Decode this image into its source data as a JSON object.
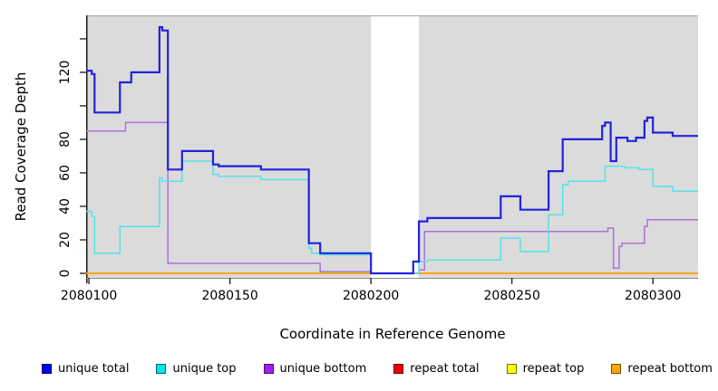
{
  "chart_data": {
    "type": "line",
    "subtype": "step-after",
    "title": "",
    "xlabel": "Coordinate in Reference Genome",
    "ylabel": "Read Coverage Depth",
    "xlim": [
      2080099,
      2080316
    ],
    "ylim": [
      0,
      154
    ],
    "grid": false,
    "legend_position": "bottom",
    "plot_bg_color": "#DBDBDB",
    "page_bg_color": "#FFFFFF",
    "gap_region": {
      "x_start": 2080200,
      "x_end": 2080217,
      "color": "#FFFFFF",
      "meaning": "zero-coverage gap"
    },
    "x_ticks": [
      {
        "value": 2080100,
        "label": "2080100"
      },
      {
        "value": 2080150,
        "label": "2080150"
      },
      {
        "value": 2080200,
        "label": "2080200"
      },
      {
        "value": 2080250,
        "label": "2080250"
      },
      {
        "value": 2080300,
        "label": "2080300"
      }
    ],
    "y_ticks": [
      {
        "value": 0,
        "label": "0"
      },
      {
        "value": 20,
        "label": "20"
      },
      {
        "value": 40,
        "label": "40"
      },
      {
        "value": 60,
        "label": "60"
      },
      {
        "value": 80,
        "label": "80"
      },
      {
        "value": 100,
        "label": ""
      },
      {
        "value": 120,
        "label": "120"
      },
      {
        "value": 140,
        "label": ""
      }
    ],
    "series": [
      {
        "name": "unique total",
        "color": "#2222DD",
        "swatch": "#0000EE",
        "width": 2.2,
        "points": [
          [
            2080099,
            121
          ],
          [
            2080101,
            119
          ],
          [
            2080102,
            96
          ],
          [
            2080111,
            114
          ],
          [
            2080115,
            120
          ],
          [
            2080125,
            147
          ],
          [
            2080126,
            145
          ],
          [
            2080128,
            62
          ],
          [
            2080133,
            73
          ],
          [
            2080144,
            65
          ],
          [
            2080146,
            64
          ],
          [
            2080161,
            62
          ],
          [
            2080178,
            18
          ],
          [
            2080182,
            12
          ],
          [
            2080200,
            0
          ],
          [
            2080215,
            7
          ],
          [
            2080217,
            31
          ],
          [
            2080220,
            33
          ],
          [
            2080246,
            46
          ],
          [
            2080253,
            38
          ],
          [
            2080263,
            61
          ],
          [
            2080268,
            80
          ],
          [
            2080282,
            88
          ],
          [
            2080283,
            90
          ],
          [
            2080285,
            67
          ],
          [
            2080287,
            81
          ],
          [
            2080291,
            79
          ],
          [
            2080294,
            81
          ],
          [
            2080297,
            91
          ],
          [
            2080298,
            93
          ],
          [
            2080300,
            84
          ],
          [
            2080307,
            82
          ],
          [
            2080316,
            82
          ]
        ]
      },
      {
        "name": "unique top",
        "color": "#55E2EA",
        "swatch": "#00E5EE",
        "width": 1.5,
        "points": [
          [
            2080099,
            37
          ],
          [
            2080101,
            34
          ],
          [
            2080102,
            12
          ],
          [
            2080111,
            28
          ],
          [
            2080125,
            57
          ],
          [
            2080126,
            55
          ],
          [
            2080133,
            67
          ],
          [
            2080144,
            59
          ],
          [
            2080146,
            58
          ],
          [
            2080161,
            56
          ],
          [
            2080178,
            15
          ],
          [
            2080179,
            12
          ],
          [
            2080182,
            11
          ],
          [
            2080200,
            0
          ],
          [
            2080217,
            7
          ],
          [
            2080220,
            8
          ],
          [
            2080246,
            21
          ],
          [
            2080253,
            13
          ],
          [
            2080263,
            35
          ],
          [
            2080268,
            53
          ],
          [
            2080270,
            55
          ],
          [
            2080283,
            64
          ],
          [
            2080290,
            63
          ],
          [
            2080295,
            62
          ],
          [
            2080300,
            52
          ],
          [
            2080307,
            49
          ],
          [
            2080316,
            49
          ]
        ]
      },
      {
        "name": "unique bottom",
        "color": "#AC71DC",
        "swatch": "#A020F0",
        "width": 1.5,
        "points": [
          [
            2080099,
            85
          ],
          [
            2080113,
            90
          ],
          [
            2080128,
            6
          ],
          [
            2080182,
            1
          ],
          [
            2080200,
            0
          ],
          [
            2080217,
            2
          ],
          [
            2080219,
            25
          ],
          [
            2080284,
            27
          ],
          [
            2080286,
            3
          ],
          [
            2080288,
            16
          ],
          [
            2080289,
            18
          ],
          [
            2080297,
            28
          ],
          [
            2080298,
            32
          ],
          [
            2080316,
            32
          ]
        ]
      },
      {
        "name": "repeat total",
        "color": "#DD0000",
        "swatch": "#EE0000",
        "width": 1.2,
        "points": [
          [
            2080099,
            0
          ],
          [
            2080316,
            0
          ]
        ]
      },
      {
        "name": "repeat top",
        "color": "#FFFF00",
        "swatch": "#FFFF00",
        "width": 1.2,
        "points": [
          [
            2080099,
            0
          ],
          [
            2080316,
            0
          ]
        ]
      },
      {
        "name": "repeat bottom",
        "color": "#FFA500",
        "swatch": "#FFA500",
        "width": 1.8,
        "points": [
          [
            2080099,
            0
          ],
          [
            2080316,
            0
          ]
        ]
      }
    ]
  }
}
